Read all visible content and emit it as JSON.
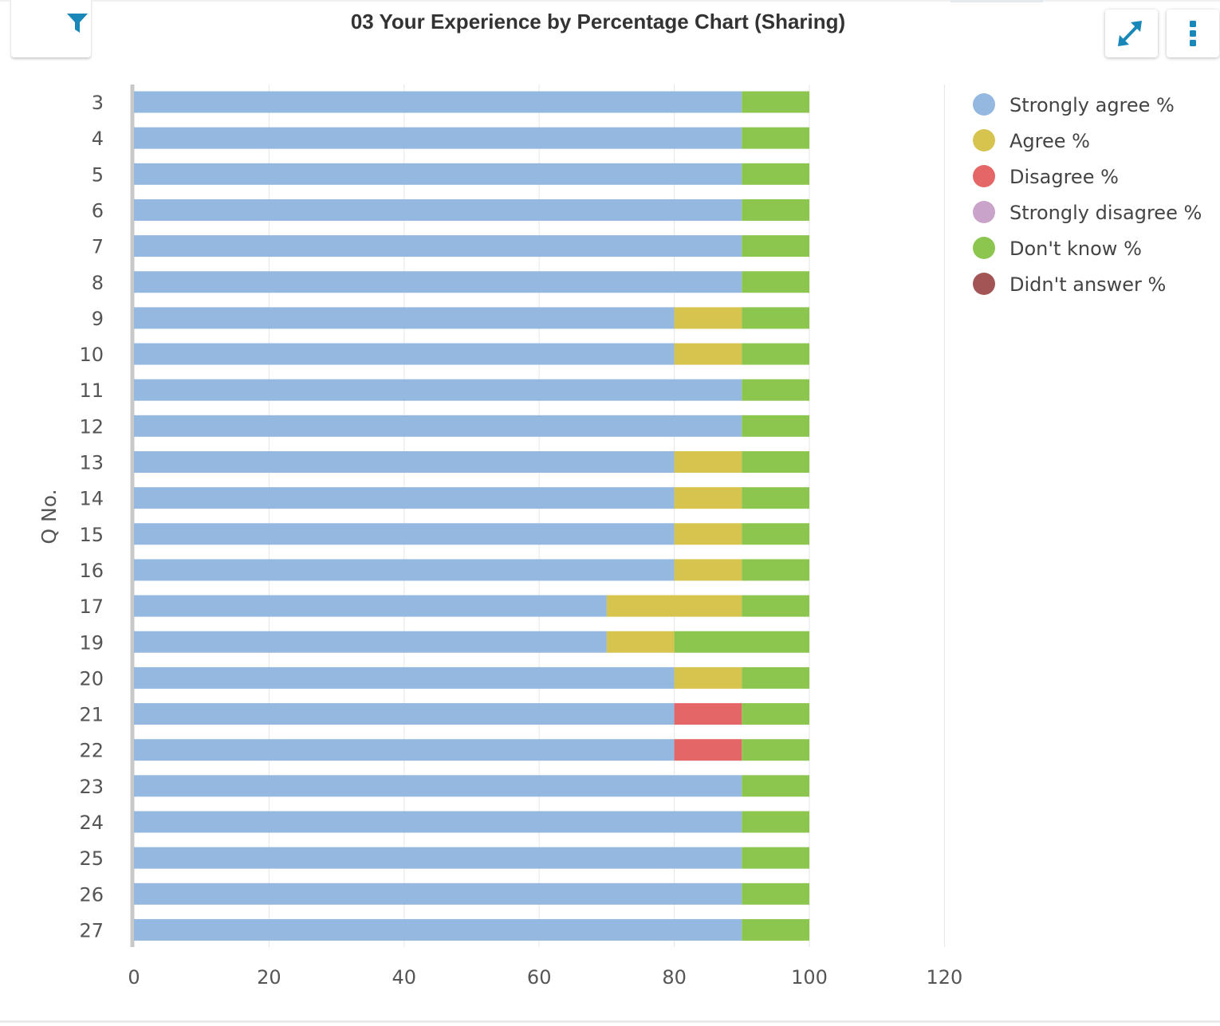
{
  "header": {
    "title": "03 Your Experience by Percentage Chart (Sharing)",
    "filter_icon": "filter-icon",
    "expand_icon": "expand-icon",
    "menu_icon": "kebab-menu-icon"
  },
  "chart_data": {
    "type": "bar",
    "orientation": "horizontal",
    "stacked": true,
    "title": "",
    "ylabel": "Q No.",
    "xlabel": "",
    "xlim": [
      0,
      120
    ],
    "xticks": [
      0,
      20,
      40,
      60,
      80,
      100,
      120
    ],
    "grid": true,
    "legend_position": "right",
    "categories": [
      "3",
      "4",
      "5",
      "6",
      "7",
      "8",
      "9",
      "10",
      "11",
      "12",
      "13",
      "14",
      "15",
      "16",
      "17",
      "19",
      "20",
      "21",
      "22",
      "23",
      "24",
      "25",
      "26",
      "27"
    ],
    "series": [
      {
        "name": "Strongly agree %",
        "color": "#94b8e0",
        "values": [
          90,
          90,
          90,
          90,
          90,
          90,
          80,
          80,
          90,
          90,
          80,
          80,
          80,
          80,
          70,
          70,
          80,
          80,
          80,
          90,
          90,
          90,
          90,
          90
        ]
      },
      {
        "name": "Agree %",
        "color": "#d6c44e",
        "values": [
          0,
          0,
          0,
          0,
          0,
          0,
          10,
          10,
          0,
          0,
          10,
          10,
          10,
          10,
          20,
          10,
          10,
          0,
          0,
          0,
          0,
          0,
          0,
          0
        ]
      },
      {
        "name": "Disagree %",
        "color": "#e56666",
        "values": [
          0,
          0,
          0,
          0,
          0,
          0,
          0,
          0,
          0,
          0,
          0,
          0,
          0,
          0,
          0,
          0,
          0,
          10,
          10,
          0,
          0,
          0,
          0,
          0
        ]
      },
      {
        "name": "Strongly disagree %",
        "color": "#c9a3c9",
        "values": [
          0,
          0,
          0,
          0,
          0,
          0,
          0,
          0,
          0,
          0,
          0,
          0,
          0,
          0,
          0,
          0,
          0,
          0,
          0,
          0,
          0,
          0,
          0,
          0
        ]
      },
      {
        "name": "Don't know %",
        "color": "#8dc64f",
        "values": [
          10,
          10,
          10,
          10,
          10,
          10,
          10,
          10,
          10,
          10,
          10,
          10,
          10,
          10,
          10,
          20,
          10,
          10,
          10,
          10,
          10,
          10,
          10,
          10
        ]
      },
      {
        "name": "Didn't answer %",
        "color": "#a35555",
        "values": [
          0,
          0,
          0,
          0,
          0,
          0,
          0,
          0,
          0,
          0,
          0,
          0,
          0,
          0,
          0,
          0,
          0,
          0,
          0,
          0,
          0,
          0,
          0,
          0
        ]
      }
    ]
  }
}
